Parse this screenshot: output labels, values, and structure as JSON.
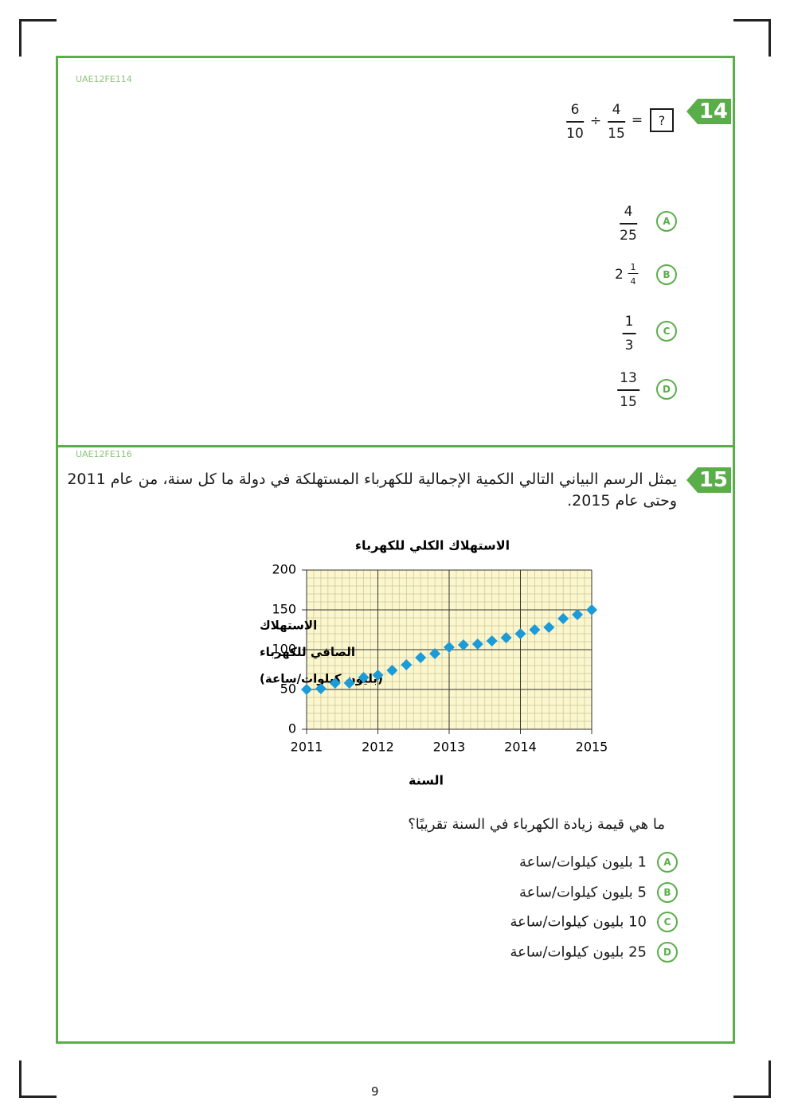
{
  "q14": {
    "code": "UAE12FE114",
    "number": "14",
    "expression": {
      "a": {
        "num": "6",
        "den": "10"
      },
      "op": "÷",
      "b": {
        "num": "4",
        "den": "15"
      },
      "eq": "=",
      "answer": "?"
    },
    "options": [
      {
        "letter": "A",
        "num": "4",
        "den": "25"
      },
      {
        "letter": "B",
        "whole": "2",
        "num": "1",
        "den": "4"
      },
      {
        "letter": "C",
        "num": "1",
        "den": "3"
      },
      {
        "letter": "D",
        "num": "13",
        "den": "15"
      }
    ]
  },
  "q15": {
    "code": "UAE12FE116",
    "number": "15",
    "text": "يمثل الرسم البياني التالي الكمية الإجمالية للكهرباء المستهلكة في دولة ما كل سنة، من عام 2011 وحتى عام 2015.",
    "question": "ما هي قيمة زيادة الكهرباء في السنة تقريبًا؟",
    "options": [
      {
        "letter": "A",
        "text": "1 بليون كيلوات/ساعة"
      },
      {
        "letter": "B",
        "text": "5 بليون كيلوات/ساعة"
      },
      {
        "letter": "C",
        "text": "10 بليون كيلوات/ساعة"
      },
      {
        "letter": "D",
        "text": "25 بليون كيلوات/ساعة"
      }
    ]
  },
  "chart_data": {
    "type": "scatter",
    "title": "الاستهلاك الكلي للكهرباء",
    "xlabel": "السنة",
    "ylabel": [
      "الاستهلاك",
      "الصافي للكهرباء",
      "(بليون كيلوات/ساعة)"
    ],
    "x": [
      2011,
      2011.2,
      2011.4,
      2011.6,
      2011.8,
      2012,
      2012.2,
      2012.4,
      2012.6,
      2012.8,
      2013,
      2013.2,
      2013.4,
      2013.6,
      2013.8,
      2014,
      2014.2,
      2014.4,
      2014.6,
      2014.8,
      2015
    ],
    "values": [
      50,
      51,
      58,
      58,
      65,
      68,
      74,
      81,
      90,
      95,
      103,
      106,
      107,
      111,
      115,
      120,
      125,
      128,
      139,
      144,
      150
    ],
    "color": "#1b9bd7",
    "marker": "diamond",
    "xlim": [
      2011,
      2015
    ],
    "xticks": [
      2011,
      2012,
      2013,
      2014,
      2015
    ],
    "ylim": [
      0,
      200
    ],
    "yticks": [
      0,
      50,
      100,
      150,
      200
    ],
    "grid": true,
    "plot_background": "#fbf6cc"
  },
  "page_number": "9"
}
